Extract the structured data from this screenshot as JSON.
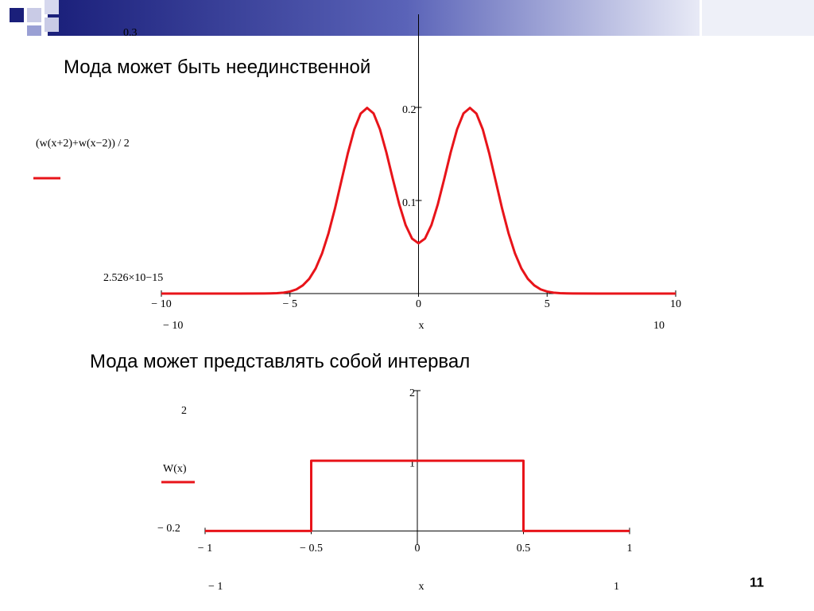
{
  "page_number": "11",
  "chart_data": [
    {
      "type": "line",
      "title": "Мода может быть неединственной",
      "x_label": "x",
      "x": [
        -10,
        -9,
        -8,
        -7,
        -6,
        -5.75,
        -5.5,
        -5.25,
        -5,
        -4.75,
        -4.5,
        -4.25,
        -4,
        -3.75,
        -3.5,
        -3.25,
        -3,
        -2.75,
        -2.5,
        -2.25,
        -2,
        -1.75,
        -1.5,
        -1.25,
        -1,
        -0.75,
        -0.5,
        -0.25,
        0,
        0.25,
        0.5,
        0.75,
        1,
        1.25,
        1.5,
        1.75,
        2,
        2.25,
        2.5,
        2.75,
        3,
        3.25,
        3.5,
        3.75,
        4,
        4.25,
        4.5,
        4.75,
        5,
        5.25,
        5.5,
        5.75,
        6,
        7,
        8,
        9,
        10
      ],
      "series": [
        {
          "name": "(w(x+2)+w(x−2)) / 2",
          "color": "#e8141a",
          "values": [
            0,
            0,
            0,
            0,
            0.0001,
            0.0002,
            0.0004,
            0.001,
            0.0022,
            0.0045,
            0.0088,
            0.0159,
            0.027,
            0.0432,
            0.0648,
            0.0913,
            0.121,
            0.1506,
            0.1762,
            0.1934,
            0.1995,
            0.1936,
            0.1765,
            0.1516,
            0.1232,
            0.0959,
            0.0735,
            0.059,
            0.054,
            0.059,
            0.0735,
            0.0959,
            0.1232,
            0.1516,
            0.1765,
            0.1936,
            0.1995,
            0.1934,
            0.1762,
            0.1506,
            0.121,
            0.0913,
            0.0648,
            0.0432,
            0.027,
            0.0159,
            0.0088,
            0.0045,
            0.0022,
            0.001,
            0.0004,
            0.0002,
            0.0001,
            0,
            0,
            0,
            0
          ]
        }
      ],
      "xlim": [
        {
          "value": -10,
          "label": "− 10"
        },
        10
      ],
      "ylim": [
        {
          "value": 2.526e-15,
          "label": "2.526×10−15"
        },
        0.3
      ],
      "xticks": [
        {
          "value": -10,
          "label": "− 10"
        },
        {
          "value": -5,
          "label": "− 5"
        },
        0,
        5,
        10
      ],
      "yticks": [
        0.1,
        0.2
      ]
    },
    {
      "type": "line",
      "title": "Мода может представлять собой интервал",
      "x_label": "x",
      "x": [
        -1,
        -0.5,
        -0.5,
        0.5,
        0.5,
        1
      ],
      "series": [
        {
          "name": "W(x)",
          "color": "#e8141a",
          "values": [
            0,
            0,
            1,
            1,
            0,
            0
          ]
        }
      ],
      "xlim": [
        {
          "value": -1,
          "label": "− 1"
        },
        1
      ],
      "ylim": [
        {
          "value": -0.2,
          "label": "− 0.2"
        },
        2
      ],
      "xticks": [
        {
          "value": -1,
          "label": "− 1"
        },
        {
          "value": -0.5,
          "label": "− 0.5"
        },
        0,
        0.5,
        1
      ],
      "yticks": [
        1,
        2
      ]
    }
  ]
}
